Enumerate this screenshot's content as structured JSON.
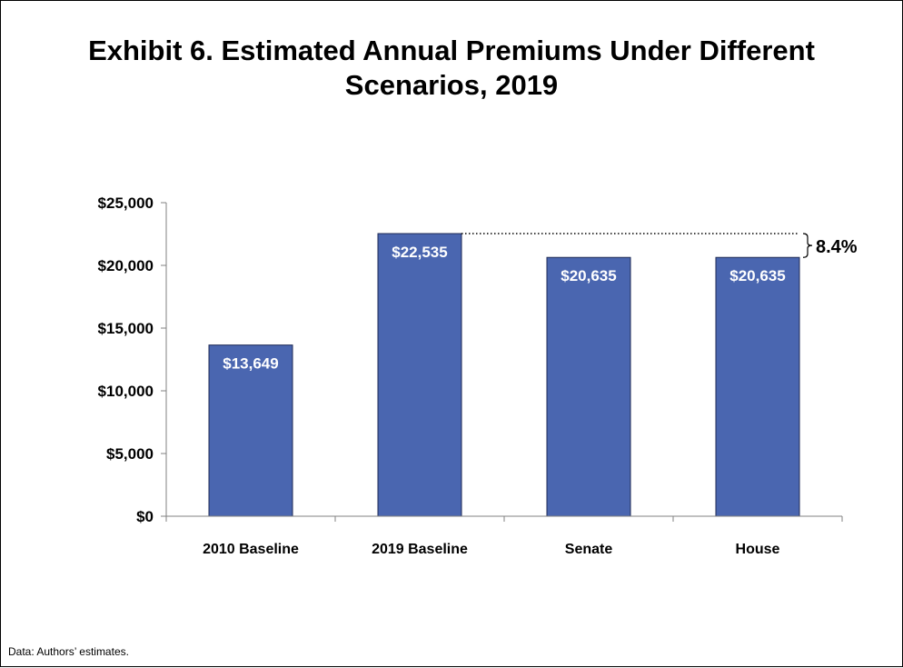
{
  "chart_data": {
    "type": "bar",
    "title": "Exhibit 6. Estimated Annual Premiums Under Different Scenarios, 2019",
    "categories": [
      "2010 Baseline",
      "2019 Baseline",
      "Senate",
      "House"
    ],
    "values": [
      13649,
      22535,
      20635,
      20635
    ],
    "value_labels": [
      "$13,649",
      "$22,535",
      "$20,635",
      "$20,635"
    ],
    "ylim": [
      0,
      25000
    ],
    "yticks": [
      0,
      5000,
      10000,
      15000,
      20000,
      25000
    ],
    "ytick_labels": [
      "$0",
      "$5,000",
      "$10,000",
      "$15,000",
      "$20,000",
      "$25,000"
    ],
    "grid": false,
    "bar_color": "#4A66B0",
    "annotation": {
      "label": "8.4%",
      "from_value": 22535,
      "to_value": 20635
    }
  },
  "source_note": "Data: Authors’ estimates."
}
